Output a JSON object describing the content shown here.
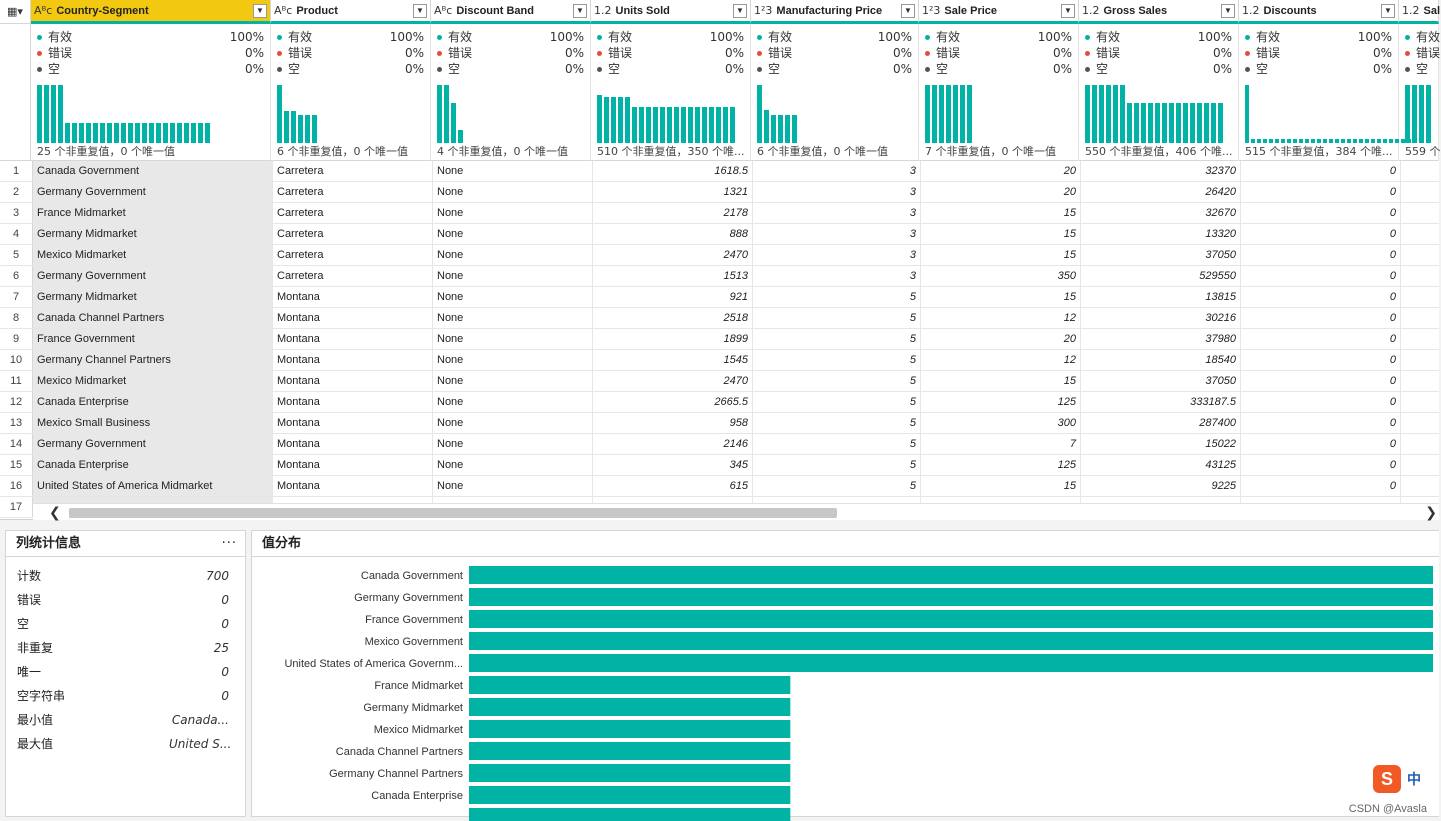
{
  "grid": {
    "corner_icon": "table-menu-icon",
    "columns": [
      {
        "type": "Aᴮc",
        "name": "Country-Segment",
        "selected": true
      },
      {
        "type": "Aᴮc",
        "name": "Product"
      },
      {
        "type": "Aᴮc",
        "name": "Discount Band"
      },
      {
        "type": "1.2",
        "name": "Units Sold"
      },
      {
        "type": "1²3",
        "name": "Manufacturing Price"
      },
      {
        "type": "1²3",
        "name": "Sale Price"
      },
      {
        "type": "1.2",
        "name": "Gross Sales"
      },
      {
        "type": "1.2",
        "name": "Discounts"
      },
      {
        "type": "1.2",
        "name": "Sal"
      }
    ],
    "profiles": [
      {
        "valid": "100%",
        "error": "0%",
        "empty": "0%",
        "distinct": "25 个非重复值，0 个唯一值"
      },
      {
        "valid": "100%",
        "error": "0%",
        "empty": "0%",
        "distinct": "6 个非重复值，0 个唯一值"
      },
      {
        "valid": "100%",
        "error": "0%",
        "empty": "0%",
        "distinct": "4 个非重复值，0 个唯一值"
      },
      {
        "valid": "100%",
        "error": "0%",
        "empty": "0%",
        "distinct": "510 个非重复值，350 个唯..."
      },
      {
        "valid": "100%",
        "error": "0%",
        "empty": "0%",
        "distinct": "6 个非重复值，0 个唯一值"
      },
      {
        "valid": "100%",
        "error": "0%",
        "empty": "0%",
        "distinct": "7 个非重复值，0 个唯一值"
      },
      {
        "valid": "100%",
        "error": "0%",
        "empty": "0%",
        "distinct": "550 个非重复值，406 个唯..."
      },
      {
        "valid": "100%",
        "error": "0%",
        "empty": "0%",
        "distinct": "515 个非重复值，384 个唯..."
      },
      {
        "valid": "",
        "error": "",
        "empty": "",
        "distinct": "559 个"
      }
    ],
    "quality_labels": {
      "valid": "有效",
      "error": "错误",
      "empty": "空"
    },
    "rows": [
      [
        "1",
        "Canada Government",
        "Carretera",
        "None",
        "1618.5",
        "3",
        "20",
        "32370",
        "0"
      ],
      [
        "2",
        "Germany Government",
        "Carretera",
        "None",
        "1321",
        "3",
        "20",
        "26420",
        "0"
      ],
      [
        "3",
        "France Midmarket",
        "Carretera",
        "None",
        "2178",
        "3",
        "15",
        "32670",
        "0"
      ],
      [
        "4",
        "Germany Midmarket",
        "Carretera",
        "None",
        "888",
        "3",
        "15",
        "13320",
        "0"
      ],
      [
        "5",
        "Mexico Midmarket",
        "Carretera",
        "None",
        "2470",
        "3",
        "15",
        "37050",
        "0"
      ],
      [
        "6",
        "Germany Government",
        "Carretera",
        "None",
        "1513",
        "3",
        "350",
        "529550",
        "0"
      ],
      [
        "7",
        "Germany Midmarket",
        "Montana",
        "None",
        "921",
        "5",
        "15",
        "13815",
        "0"
      ],
      [
        "8",
        "Canada Channel Partners",
        "Montana",
        "None",
        "2518",
        "5",
        "12",
        "30216",
        "0"
      ],
      [
        "9",
        "France Government",
        "Montana",
        "None",
        "1899",
        "5",
        "20",
        "37980",
        "0"
      ],
      [
        "10",
        "Germany Channel Partners",
        "Montana",
        "None",
        "1545",
        "5",
        "12",
        "18540",
        "0"
      ],
      [
        "11",
        "Mexico Midmarket",
        "Montana",
        "None",
        "2470",
        "5",
        "15",
        "37050",
        "0"
      ],
      [
        "12",
        "Canada Enterprise",
        "Montana",
        "None",
        "2665.5",
        "5",
        "125",
        "333187.5",
        "0"
      ],
      [
        "13",
        "Mexico Small Business",
        "Montana",
        "None",
        "958",
        "5",
        "300",
        "287400",
        "0"
      ],
      [
        "14",
        "Germany Government",
        "Montana",
        "None",
        "2146",
        "5",
        "7",
        "15022",
        "0"
      ],
      [
        "15",
        "Canada Enterprise",
        "Montana",
        "None",
        "345",
        "5",
        "125",
        "43125",
        "0"
      ],
      [
        "16",
        "United States of America Midmarket",
        "Montana",
        "None",
        "615",
        "5",
        "15",
        "9225",
        "0"
      ],
      [
        "17",
        "",
        "",
        "",
        "",
        "",
        "",
        "",
        ""
      ]
    ]
  },
  "stats": {
    "title": "列统计信息",
    "more_label": "···",
    "items": [
      {
        "label": "计数",
        "value": "700"
      },
      {
        "label": "错误",
        "value": "0"
      },
      {
        "label": "空",
        "value": "0"
      },
      {
        "label": "非重复",
        "value": "25"
      },
      {
        "label": "唯一",
        "value": "0"
      },
      {
        "label": "空字符串",
        "value": "0"
      },
      {
        "label": "最小值",
        "value": "Canada..."
      },
      {
        "label": "最大值",
        "value": "United S..."
      }
    ]
  },
  "value_distribution": {
    "title": "值分布"
  },
  "chart_data": {
    "type": "bar",
    "orientation": "horizontal",
    "title": "值分布",
    "categories": [
      "Canada Government",
      "Germany Government",
      "France Government",
      "Mexico Government",
      "United States of America Governm...",
      "France Midmarket",
      "Germany Midmarket",
      "Mexico Midmarket",
      "Canada Channel Partners",
      "Germany Channel Partners",
      "Canada Enterprise",
      ""
    ],
    "values": [
      60,
      60,
      60,
      60,
      60,
      20,
      20,
      20,
      20,
      20,
      20,
      20
    ],
    "xlim": [
      0,
      60
    ],
    "color": "#00b3a4"
  },
  "watermark": "CSDN @Avasla",
  "ime": {
    "logo": "S",
    "mode": "中"
  },
  "colors": {
    "accent": "#00b3a4",
    "selected_header": "#f2c811",
    "valid": "#00b3a4",
    "error": "#e84c3d",
    "empty": "#555555"
  }
}
